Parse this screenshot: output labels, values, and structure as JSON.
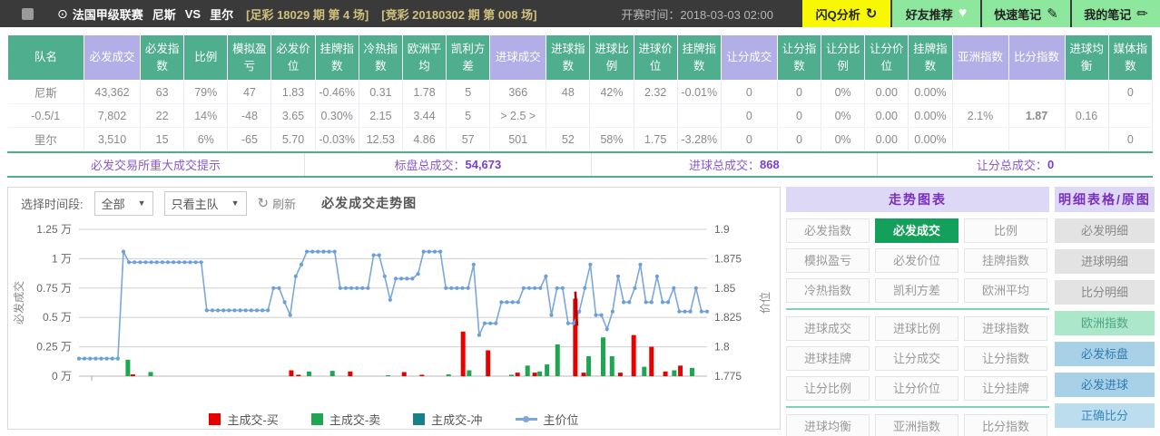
{
  "topbar": {
    "league": "法国甲级联赛",
    "home": "尼斯",
    "vs": "VS",
    "away": "里尔",
    "tag1": "[足彩 18029 期 第 4 场]",
    "tag2": "[竞彩 20180302 期 第 008 场]",
    "start_time_label": "开赛时间：",
    "start_time": "2018-03-03 02:00",
    "buttons": [
      {
        "label": "闪Q分析",
        "icon": "refresh-flash-icon",
        "style": "yellow"
      },
      {
        "label": "好友推荐",
        "icon": "heart-icon",
        "style": "green"
      },
      {
        "label": "快速笔记",
        "icon": "note-edit-icon",
        "style": "green"
      },
      {
        "label": "我的笔记",
        "icon": "pencil-icon",
        "style": "green"
      }
    ]
  },
  "table": {
    "columns": [
      {
        "label": "队名",
        "header": "g"
      },
      {
        "label": "必发成交",
        "header": "p"
      },
      {
        "label": "必发指数",
        "header": "g"
      },
      {
        "label": "比例",
        "header": "g"
      },
      {
        "label": "模拟盈亏",
        "header": "g"
      },
      {
        "label": "必发价位",
        "header": "g"
      },
      {
        "label": "挂牌指数",
        "header": "g"
      },
      {
        "label": "冷热指数",
        "header": "g"
      },
      {
        "label": "欧洲平均",
        "header": "g"
      },
      {
        "label": "凯利方差",
        "header": "g"
      },
      {
        "label": "进球成交",
        "header": "p"
      },
      {
        "label": "进球指数",
        "header": "g"
      },
      {
        "label": "进球比例",
        "header": "g"
      },
      {
        "label": "进球价位",
        "header": "g"
      },
      {
        "label": "挂牌指数",
        "header": "g"
      },
      {
        "label": "让分成交",
        "header": "p"
      },
      {
        "label": "让分指数",
        "header": "g"
      },
      {
        "label": "让分比例",
        "header": "g"
      },
      {
        "label": "让分价位",
        "header": "g"
      },
      {
        "label": "挂牌指数",
        "header": "g"
      },
      {
        "label": "亚洲指数",
        "header": "p"
      },
      {
        "label": "比分指数",
        "header": "p"
      },
      {
        "label": "进球均衡",
        "header": "g"
      },
      {
        "label": "媒体指数",
        "header": "g"
      }
    ],
    "rows": [
      [
        "尼斯",
        "43,362",
        "63",
        "79%",
        "47",
        "1.83",
        {
          "t": "-0.46%",
          "c": "green"
        },
        "0.31",
        "1.78",
        "5",
        "366",
        "48",
        "42%",
        "2.32",
        {
          "t": "-0.01%",
          "c": "green"
        },
        "0",
        "0",
        "0%",
        "0.00",
        "0.00%",
        "",
        "",
        "",
        "0"
      ],
      [
        "-0.5/1",
        "7,802",
        "22",
        "14%",
        "-48",
        "3.65",
        {
          "t": "0.30%",
          "c": "blue"
        },
        "2.15",
        "3.44",
        "5",
        "> 2.5 >",
        "",
        "",
        "",
        "",
        "0",
        "0",
        "0%",
        "0.00",
        "0.00%",
        "2.1%",
        {
          "t": "1.87",
          "c": "bluebold"
        },
        "0.16",
        ""
      ],
      [
        "里尔",
        "3,510",
        "15",
        "6%",
        "-65",
        "5.70",
        {
          "t": "-0.03%",
          "c": "green"
        },
        "12.53",
        "4.86",
        "57",
        "501",
        "52",
        "58%",
        "1.75",
        {
          "t": "-3.28%",
          "c": "green"
        },
        "0",
        "0",
        "0%",
        "0.00",
        "0.00%",
        "",
        "",
        "",
        "0"
      ]
    ],
    "summary": [
      {
        "label": "必发交易所重大成交提示",
        "value": ""
      },
      {
        "label": "标盘总成交：",
        "value": "54,673"
      },
      {
        "label": "进球总成交：",
        "value": "868"
      },
      {
        "label": "让分总成交：",
        "value": "0"
      }
    ]
  },
  "chart_controls": {
    "time_label": "选择时间段:",
    "time_value": "全部",
    "team_value": "只看主队",
    "refresh_label": "刷新",
    "title": "必发成交走势图"
  },
  "chart_data": {
    "type": "line+bar",
    "title": "必发成交走势图",
    "left_axis": {
      "label": "必发成交",
      "unit": "万",
      "min": 0,
      "max": 1.25,
      "ticks": [
        "1.25 万",
        "1 万",
        "0.75 万",
        "0.5 万",
        "0.25 万",
        "0 万"
      ]
    },
    "right_axis": {
      "label": "价位",
      "min": 1.775,
      "max": 1.9,
      "ticks": [
        "1.9",
        "1.875",
        "1.85",
        "1.825",
        "1.8",
        "1.775"
      ]
    },
    "legend": [
      {
        "label": "主成交-买",
        "color": "#e60000",
        "type": "bar"
      },
      {
        "label": "主成交-卖",
        "color": "#1fa651",
        "type": "bar"
      },
      {
        "label": "主成交-冲",
        "color": "#17808a",
        "type": "bar"
      },
      {
        "label": "主价位",
        "color": "#7ba7dc",
        "type": "line"
      }
    ],
    "price_line": [
      1.79,
      1.79,
      1.79,
      1.79,
      1.79,
      1.79,
      1.79,
      1.79,
      1.881,
      1.872,
      1.872,
      1.872,
      1.872,
      1.872,
      1.872,
      1.872,
      1.872,
      1.872,
      1.872,
      1.872,
      1.872,
      1.872,
      1.872,
      1.831,
      1.831,
      1.831,
      1.831,
      1.831,
      1.831,
      1.831,
      1.831,
      1.831,
      1.831,
      1.831,
      1.831,
      1.85,
      1.85,
      1.838,
      1.827,
      1.86,
      1.87,
      1.881,
      1.881,
      1.881,
      1.881,
      1.881,
      1.881,
      1.85,
      1.85,
      1.85,
      1.85,
      1.85,
      1.85,
      1.878,
      1.878,
      1.86,
      1.84,
      1.858,
      1.858,
      1.858,
      1.858,
      1.862,
      1.881,
      1.881,
      1.881,
      1.881,
      1.85,
      1.85,
      1.85,
      1.85,
      1.85,
      1.87,
      1.81,
      1.82,
      1.82,
      1.82,
      1.838,
      1.838,
      1.838,
      1.838,
      1.85,
      1.85,
      1.85,
      1.85,
      1.86,
      1.827,
      1.85,
      1.85,
      1.82,
      1.82,
      1.83,
      1.85,
      1.87,
      1.827,
      1.827,
      1.815,
      1.83,
      1.86,
      1.838,
      1.838,
      1.85,
      1.87,
      1.838,
      1.838,
      1.86,
      1.838,
      1.838,
      1.85,
      1.83,
      1.83,
      1.83,
      1.85,
      1.83,
      1.83
    ],
    "volume_bars": [
      {
        "x": 8.8,
        "series": "主成交-卖",
        "value": 0.14
      },
      {
        "x": 9.7,
        "series": "主成交-买",
        "value": 0.015
      },
      {
        "x": 12.9,
        "series": "主成交-卖",
        "value": 0.035
      },
      {
        "x": 38.2,
        "series": "主成交-买",
        "value": 0.05
      },
      {
        "x": 39.5,
        "series": "主成交-买",
        "value": 0.012
      },
      {
        "x": 41.4,
        "series": "主成交-卖",
        "value": 0.04
      },
      {
        "x": 45.6,
        "series": "主成交-卖",
        "value": 0.045
      },
      {
        "x": 48.8,
        "series": "主成交-买",
        "value": 0.04
      },
      {
        "x": 55.6,
        "series": "主成交-卖",
        "value": 0.008
      },
      {
        "x": 58.5,
        "series": "主成交-买",
        "value": 0.035
      },
      {
        "x": 61.7,
        "series": "主成交-买",
        "value": 0.012
      },
      {
        "x": 66.5,
        "series": "主成交-卖",
        "value": 0.015
      },
      {
        "x": 69.1,
        "series": "主成交-买",
        "value": 0.38
      },
      {
        "x": 70.2,
        "series": "主成交-卖",
        "value": 0.05
      },
      {
        "x": 73.6,
        "series": "主成交-买",
        "value": 0.22
      },
      {
        "x": 77.8,
        "series": "主成交-卖",
        "value": 0.012
      },
      {
        "x": 78.9,
        "series": "主成交-买",
        "value": 0.03
      },
      {
        "x": 80.7,
        "series": "主成交-卖",
        "value": 0.09
      },
      {
        "x": 82.0,
        "series": "主成交-买",
        "value": 0.03
      },
      {
        "x": 82.9,
        "series": "主成交-卖",
        "value": 0.04
      },
      {
        "x": 84.2,
        "series": "主成交-卖",
        "value": 0.1
      },
      {
        "x": 86.1,
        "series": "主成交-卖",
        "value": 0.27
      },
      {
        "x": 89.3,
        "series": "主成交-买",
        "value": 0.66
      },
      {
        "x": 90.8,
        "series": "主成交-买",
        "value": 0.03
      },
      {
        "x": 91.7,
        "series": "主成交-卖",
        "value": 0.17
      },
      {
        "x": 94.3,
        "series": "主成交-卖",
        "value": 0.33
      },
      {
        "x": 95.9,
        "series": "主成交-卖",
        "value": 0.17
      },
      {
        "x": 97.4,
        "series": "主成交-买",
        "value": 0.03
      },
      {
        "x": 99.8,
        "series": "主成交-买",
        "value": 0.35
      },
      {
        "x": 101.7,
        "series": "主成交-卖",
        "value": 0.08
      },
      {
        "x": 103.0,
        "series": "主成交-买",
        "value": 0.25
      },
      {
        "x": 105.5,
        "series": "主成交-买",
        "value": 0.04
      },
      {
        "x": 107.1,
        "series": "主成交-卖",
        "value": 0.05
      },
      {
        "x": 108.2,
        "series": "主成交-买",
        "value": 0.09
      },
      {
        "x": 110.3,
        "series": "主成交-卖",
        "value": 0.07
      }
    ],
    "annotation": {
      "x": 89.3,
      "price_from": 1.847,
      "price_to": 1.818,
      "color": "#b30000"
    },
    "series_colors": {
      "主成交-买": "#e60000",
      "主成交-卖": "#1fa651",
      "主成交-冲": "#17808a",
      "主价位": "#7ba7dc"
    },
    "grid": true,
    "legend_position": "bottom"
  },
  "trend_panel": {
    "title": "走势图表",
    "active_button": "必发成交",
    "rows": [
      [
        "必发指数",
        "必发成交",
        "比例"
      ],
      [
        "模拟盈亏",
        "必发价位",
        "挂牌指数"
      ],
      [
        "冷热指数",
        "凯利方差",
        "欧洲平均"
      ],
      [
        "进球成交",
        "进球比例",
        "进球指数"
      ],
      [
        "进球挂牌",
        "让分成交",
        "让分指数"
      ],
      [
        "让分比例",
        "让分价位",
        "让分挂牌"
      ],
      [
        "进球均衡",
        "亚洲指数",
        "比分指数"
      ]
    ],
    "dividers_after_rows": [
      2,
      5
    ]
  },
  "detail_panel": {
    "title": "明细表格/原图",
    "buttons": [
      {
        "label": "必发明细",
        "style": "gray"
      },
      {
        "label": "进球明细",
        "style": "gray"
      },
      {
        "label": "比分明细",
        "style": "gray"
      },
      {
        "label": "欧洲指数",
        "style": "greenbg"
      },
      {
        "label": "必发标盘",
        "style": "bluebg"
      },
      {
        "label": "必发进球",
        "style": "bluebg"
      },
      {
        "label": "正确比分",
        "style": "lightblue"
      }
    ]
  },
  "colors": {
    "topbar_bg": "#3a3a3a",
    "tag_text": "#cfc07c",
    "yellow_btn": "#f8f801",
    "green_btn": "#8de79c",
    "header_green": "#4fae8d",
    "header_lavender": "#b2aee7",
    "cell_lavender": "#efecf9",
    "positive_blue": "#2b35c0",
    "negative_green": "#6edcb0",
    "summary_purple": "#8a5ace",
    "panel_header_bg": "#ddd8f5",
    "panel_header_text": "#7b2fbe",
    "active_green": "#13a05a",
    "line_blue": "#7ba7dc",
    "bar_buy": "#e60000",
    "bar_sell": "#1fa651",
    "bar_chong": "#17808a"
  }
}
